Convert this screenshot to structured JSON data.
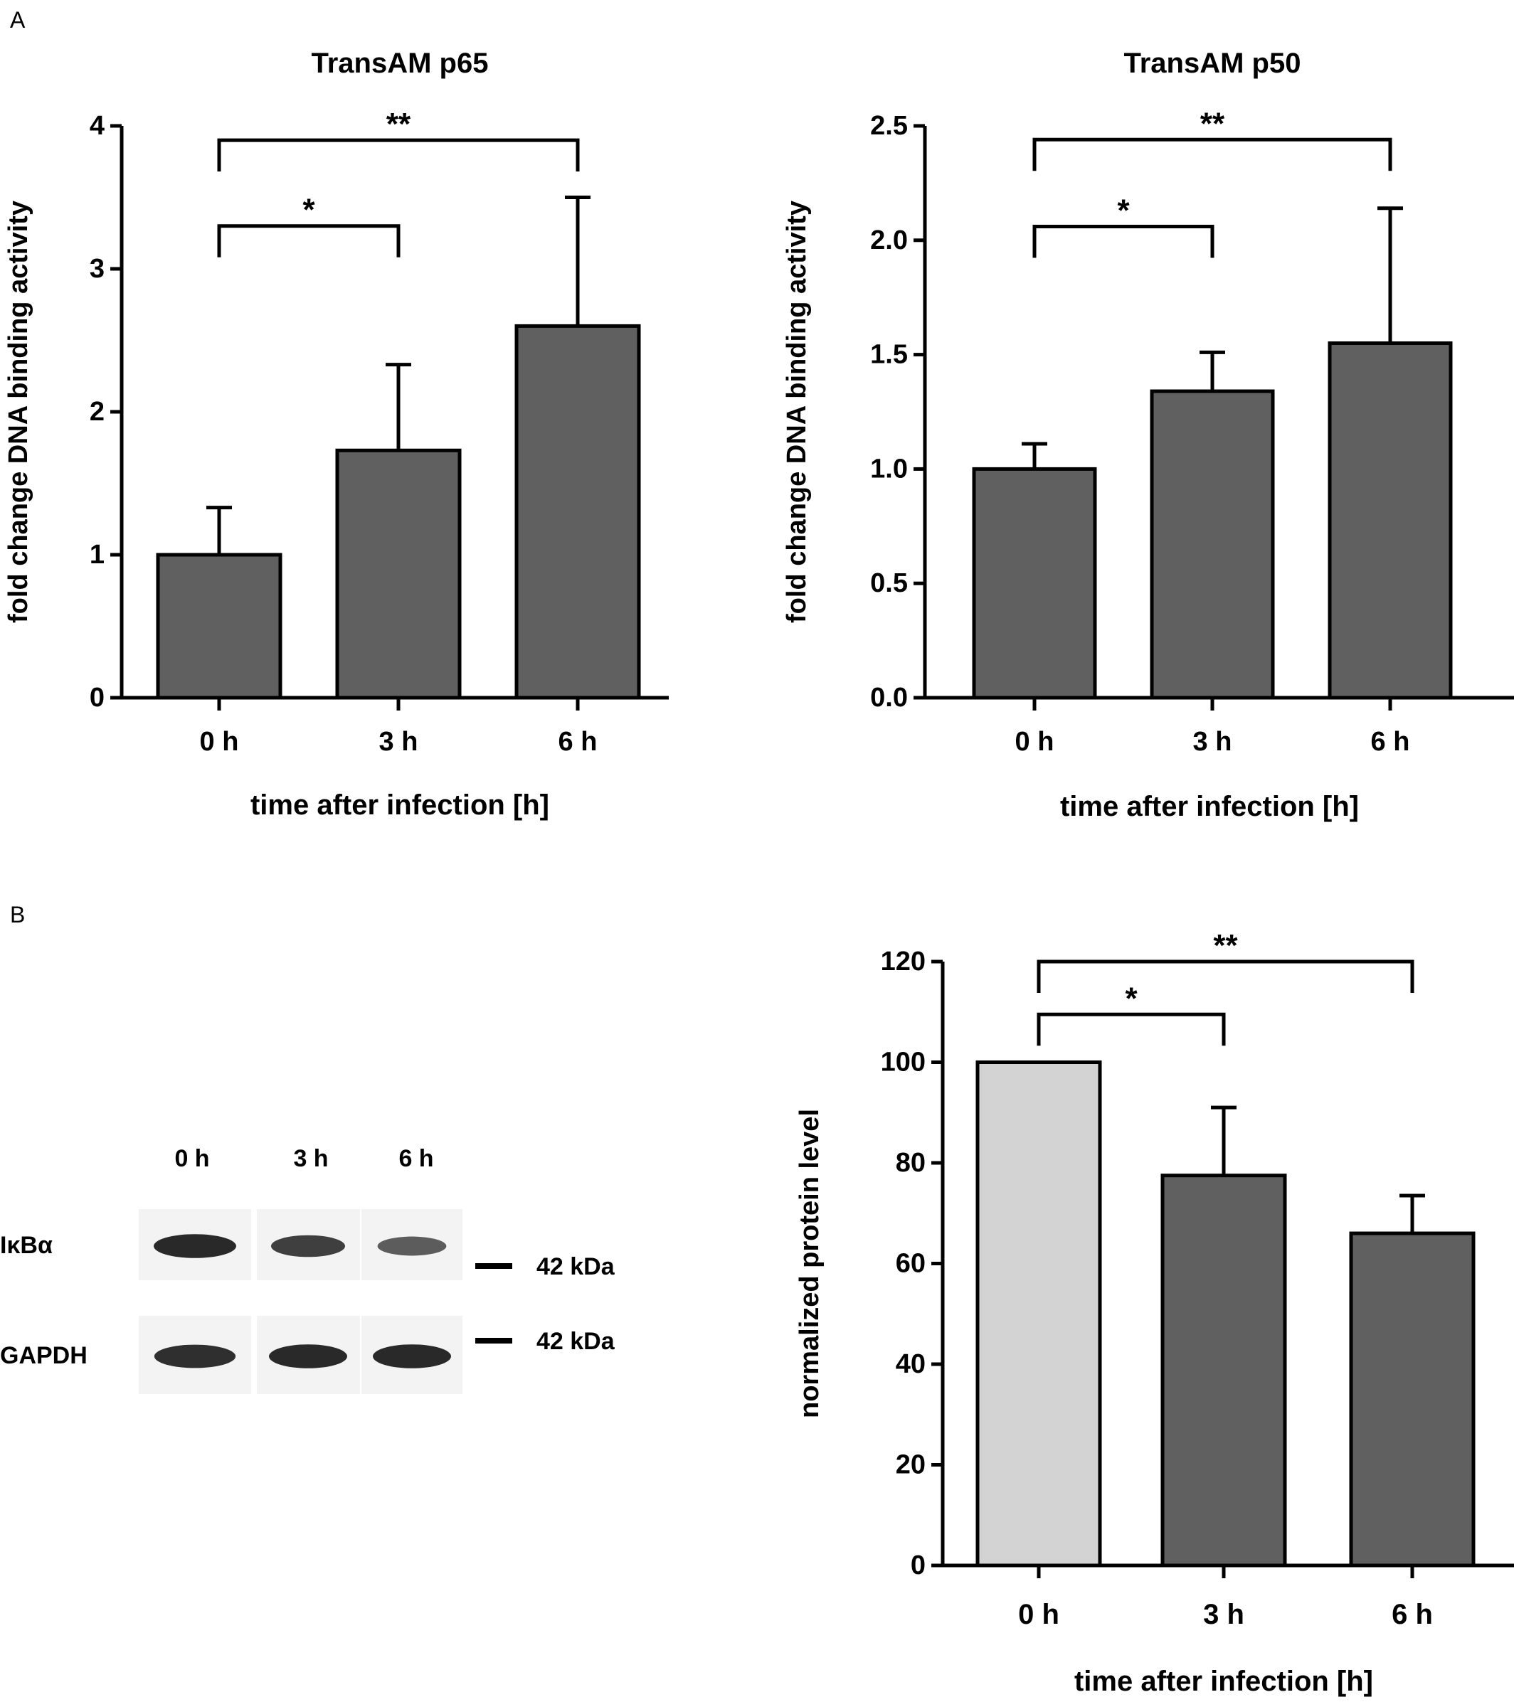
{
  "panel_labels": {
    "a": "A",
    "b": "B"
  },
  "colors": {
    "bar_dark": "#606060",
    "bar_light": "#d3d3d3",
    "stroke": "#000000",
    "band": "#1e1e1e",
    "blot_bg": "#f3f3f3"
  },
  "chart_data": [
    {
      "id": "p65",
      "type": "bar",
      "title": "TransAM p65",
      "xlabel": "time after infection [h]",
      "ylabel": "fold change DNA binding activity",
      "categories": [
        "0 h",
        "3 h",
        "6 h"
      ],
      "values": [
        1.0,
        1.73,
        2.6
      ],
      "error": [
        0.33,
        0.6,
        0.9
      ],
      "bar_colors": [
        "#606060",
        "#606060",
        "#606060"
      ],
      "ylim": [
        0,
        4
      ],
      "yticks": [
        0,
        1,
        2,
        3,
        4
      ],
      "ytick_labels": [
        "0",
        "1",
        "2",
        "3",
        "4"
      ],
      "grid": false,
      "significance": [
        {
          "from": 0,
          "to": 1,
          "label": "*",
          "level": 3.3
        },
        {
          "from": 0,
          "to": 2,
          "label": "**",
          "level": 3.9
        }
      ]
    },
    {
      "id": "p50",
      "type": "bar",
      "title": "TransAM p50",
      "xlabel": "time after infection [h]",
      "ylabel": "fold change DNA binding activity",
      "categories": [
        "0 h",
        "3 h",
        "6 h"
      ],
      "values": [
        1.0,
        1.34,
        1.55
      ],
      "error": [
        0.11,
        0.17,
        0.59
      ],
      "bar_colors": [
        "#606060",
        "#606060",
        "#606060"
      ],
      "ylim": [
        0,
        2.5
      ],
      "yticks": [
        0,
        0.5,
        1.0,
        1.5,
        2.0,
        2.5
      ],
      "ytick_labels": [
        "0.0",
        "0.5",
        "1.0",
        "1.5",
        "2.0",
        "2.5"
      ],
      "grid": false,
      "significance": [
        {
          "from": 0,
          "to": 1,
          "label": "*",
          "level": 2.06
        },
        {
          "from": 0,
          "to": 2,
          "label": "**",
          "level": 2.44
        }
      ]
    },
    {
      "id": "protein",
      "type": "bar",
      "title": "",
      "xlabel": "time after infection [h]",
      "ylabel": "normalized protein level",
      "categories": [
        "0 h",
        "3 h",
        "6 h"
      ],
      "values": [
        100,
        77.5,
        66
      ],
      "error": [
        0,
        13.5,
        7.5
      ],
      "bar_colors": [
        "#d3d3d3",
        "#606060",
        "#606060"
      ],
      "ylim": [
        0,
        120
      ],
      "yticks": [
        0,
        20,
        40,
        60,
        80,
        100,
        120
      ],
      "ytick_labels": [
        "0",
        "20",
        "40",
        "60",
        "80",
        "100",
        "120"
      ],
      "grid": false,
      "significance": [
        {
          "from": 0,
          "to": 1,
          "label": "*",
          "level": 109.5
        },
        {
          "from": 0,
          "to": 2,
          "label": "**",
          "level": 120
        }
      ]
    }
  ],
  "blot": {
    "lanes": [
      "0 h",
      "3 h",
      "6 h"
    ],
    "proteins": [
      {
        "name": "IκBα",
        "marker": "42 kDa",
        "intensity": [
          1.0,
          0.82,
          0.6
        ]
      },
      {
        "name": "GAPDH",
        "marker": "42 kDa",
        "intensity": [
          0.95,
          1.0,
          1.0
        ]
      }
    ]
  }
}
